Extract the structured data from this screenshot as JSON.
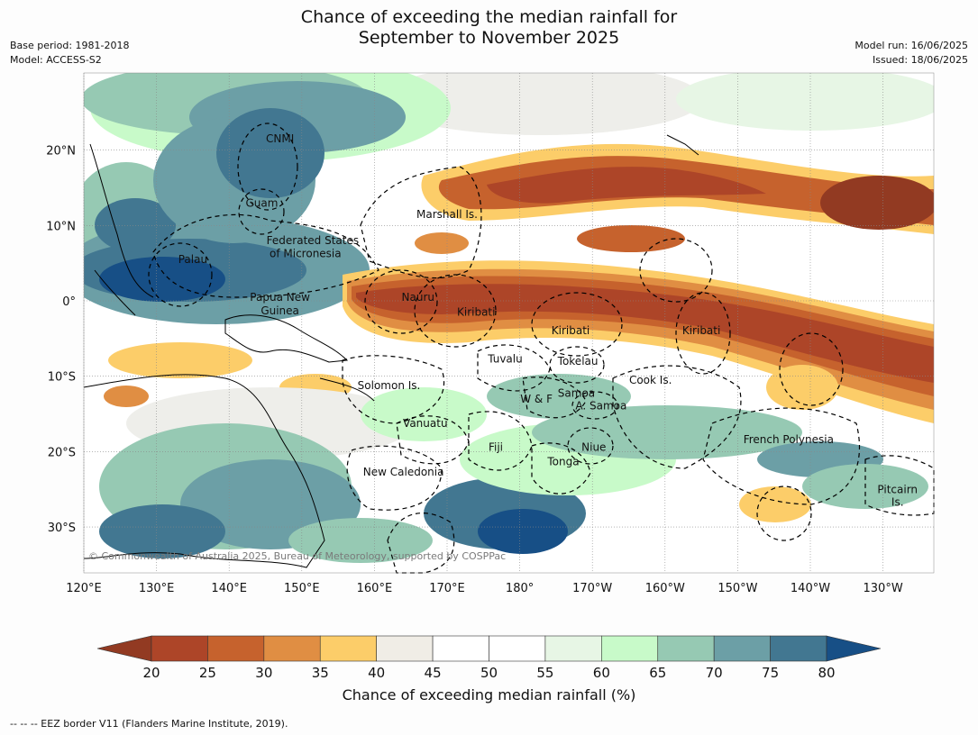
{
  "title": {
    "line1": "Chance of exceeding the median rainfall for",
    "line2": "September to November 2025"
  },
  "meta": {
    "base_period": "Base period: 1981-2018",
    "model": "Model: ACCESS-S2",
    "model_run": "Model run: 16/06/2025",
    "issued": "Issued: 18/06/2025"
  },
  "map": {
    "lon_labels": [
      "120°E",
      "130°E",
      "140°E",
      "150°E",
      "160°E",
      "170°E",
      "180°",
      "170°W",
      "160°W",
      "150°W",
      "140°W",
      "130°W"
    ],
    "lat_labels": [
      "20°N",
      "10°N",
      "0°",
      "10°S",
      "20°S",
      "30°S"
    ],
    "regions": [
      {
        "name": "CNMI",
        "lon": 147,
        "lat": 21
      },
      {
        "name": "Guam",
        "lon": 144.5,
        "lat": 12.5
      },
      {
        "name": "Marshall Is.",
        "lon": 170,
        "lat": 11
      },
      {
        "name": "Federated States",
        "lon": 151.5,
        "lat": 7.5
      },
      {
        "name": "of Micronesia",
        "lon": 150.5,
        "lat": 5.8
      },
      {
        "name": "Palau",
        "lon": 135,
        "lat": 5
      },
      {
        "name": "Papua New",
        "lon": 147,
        "lat": 0
      },
      {
        "name": "Guinea",
        "lon": 147,
        "lat": -1.8
      },
      {
        "name": "Nauru",
        "lon": 166,
        "lat": 0
      },
      {
        "name": "Kiribati",
        "lon": 174,
        "lat": -2
      },
      {
        "name": "Kiribati",
        "lon": -173,
        "lat": -4.4
      },
      {
        "name": "Kiribati",
        "lon": -155,
        "lat": -4.4
      },
      {
        "name": "Tuvalu",
        "lon": 178,
        "lat": -8.2
      },
      {
        "name": "Tokelau",
        "lon": -172,
        "lat": -8.5
      },
      {
        "name": "Solomon Is.",
        "lon": 162,
        "lat": -11.7
      },
      {
        "name": "Cook Is.",
        "lon": -162,
        "lat": -11
      },
      {
        "name": "Samoa",
        "lon": -172.2,
        "lat": -12.7
      },
      {
        "name": "W & F",
        "lon": -177.7,
        "lat": -13.5
      },
      {
        "name": "A. Samoa",
        "lon": -168.8,
        "lat": -14.4
      },
      {
        "name": "Vanuatu",
        "lon": 167,
        "lat": -16.7
      },
      {
        "name": "French Polynesia",
        "lon": -143,
        "lat": -18.9
      },
      {
        "name": "Fiji",
        "lon": 176.7,
        "lat": -19.9
      },
      {
        "name": "Niue",
        "lon": -169.8,
        "lat": -19.9
      },
      {
        "name": "Tonga",
        "lon": -174,
        "lat": -21.8
      },
      {
        "name": "New Caledonia",
        "lon": 164,
        "lat": -23.2
      },
      {
        "name": "Pitcairn",
        "lon": -128,
        "lat": -25.5
      },
      {
        "name": "Is.",
        "lon": -128,
        "lat": -27.2
      }
    ],
    "copyright": "© Commonwealth of Australia 2025, Bureau of Meteorology, supported by COSPPac"
  },
  "colorbar": {
    "ticks": [
      "20",
      "25",
      "30",
      "35",
      "40",
      "45",
      "50",
      "55",
      "60",
      "65",
      "70",
      "75",
      "80"
    ],
    "colors": [
      "#ad4528",
      "#c6622d",
      "#e08e43",
      "#fccd69",
      "#f0ede6",
      "#ffffff",
      "#ffffff",
      "#e7f6e5",
      "#c8fac9",
      "#96c9b3",
      "#6c9fa6",
      "#427791"
    ],
    "under_color": "#923a22",
    "over_color": "#174f86",
    "title": "Chance of exceeding median rainfall (%)"
  },
  "footer": "--  --  -- EEZ border V11 (Flanders Marine Institute, 2019)."
}
